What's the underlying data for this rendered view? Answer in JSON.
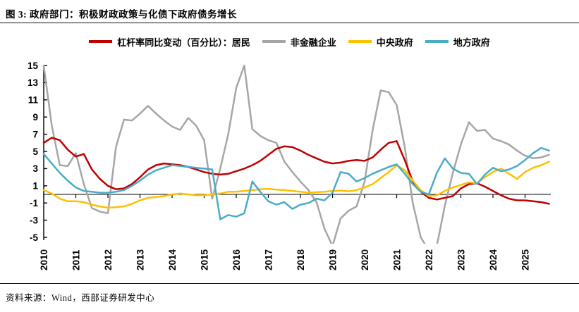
{
  "figure": {
    "title": "图 3: 政府部门：积极财政政策与化债下政府债务增长",
    "source": "资料来源：Wind，西部证券研发中心"
  },
  "colors": {
    "households": "#C00000",
    "nonfinancial": "#A6A6A6",
    "central_gov": "#FFC000",
    "local_gov": "#4BACC6",
    "axis": "#000000"
  },
  "chart_data": {
    "type": "line",
    "title": "政府部门：积极财政政策与化债下政府债务增长",
    "xlabel": "",
    "ylabel": "",
    "x_start": 2010,
    "x_step": 0.25,
    "x_tick_labels": [
      "2010",
      "2011",
      "2012",
      "2013",
      "2014",
      "2015",
      "2016",
      "2017",
      "2018",
      "2019",
      "2020",
      "2021",
      "2022",
      "2023",
      "2024",
      "2025"
    ],
    "y_ticks": [
      15,
      13,
      11,
      9,
      7,
      5,
      3,
      1,
      -1,
      -3,
      -5
    ],
    "ylim": [
      -5,
      15
    ],
    "zero_line": true,
    "grid": false,
    "legend_position": "top",
    "series": [
      {
        "name": "杠杆率同比变动（百分比）：居民",
        "color": "#C00000",
        "values": [
          6.0,
          6.6,
          6.3,
          5.2,
          4.4,
          4.7,
          2.9,
          1.8,
          1.0,
          0.6,
          0.7,
          1.2,
          2.0,
          2.9,
          3.4,
          3.6,
          3.5,
          3.4,
          3.2,
          2.9,
          2.6,
          2.4,
          2.3,
          2.4,
          2.7,
          3.0,
          3.4,
          3.9,
          4.6,
          5.3,
          5.6,
          5.5,
          5.1,
          4.6,
          4.2,
          3.8,
          3.6,
          3.7,
          3.9,
          4.0,
          3.9,
          4.3,
          5.2,
          6.0,
          6.2,
          4.0,
          1.5,
          0.3,
          -0.4,
          -0.6,
          -0.4,
          -0.2,
          0.7,
          1.2,
          1.3,
          0.9,
          0.4,
          -0.1,
          -0.5,
          -0.7,
          -0.7,
          -0.8,
          -0.9,
          -1.1
        ]
      },
      {
        "name": "非金融企业",
        "color": "#A6A6A6",
        "values": [
          15.0,
          8.0,
          3.4,
          3.3,
          4.8,
          1.2,
          -1.6,
          -2.0,
          -2.2,
          5.5,
          8.7,
          8.6,
          9.4,
          10.3,
          9.4,
          8.6,
          7.9,
          7.5,
          8.9,
          8.0,
          6.3,
          -0.5,
          3.0,
          7.0,
          12.4,
          15.0,
          7.6,
          6.8,
          6.3,
          6.0,
          3.8,
          2.6,
          1.5,
          0.5,
          -0.9,
          -4.0,
          -6.0,
          -2.8,
          -1.9,
          -1.4,
          1.5,
          7.5,
          12.1,
          11.9,
          10.4,
          5.5,
          -1.0,
          -5.0,
          -6.5,
          -6.0,
          -1.3,
          2.5,
          5.8,
          8.4,
          7.4,
          7.5,
          6.5,
          6.2,
          5.8,
          5.1,
          4.5,
          4.2,
          4.3,
          4.6
        ]
      },
      {
        "name": "中央政府",
        "color": "#FFC000",
        "values": [
          0.5,
          0.1,
          -0.5,
          -0.8,
          -0.8,
          -0.9,
          -1.2,
          -1.4,
          -1.55,
          -1.5,
          -1.4,
          -1.1,
          -0.7,
          -0.4,
          -0.3,
          -0.2,
          0.0,
          0.1,
          0.0,
          -0.1,
          -0.1,
          0.0,
          0.1,
          0.3,
          0.3,
          0.4,
          0.5,
          0.6,
          0.65,
          0.55,
          0.5,
          0.4,
          0.3,
          0.2,
          0.25,
          0.3,
          0.4,
          0.45,
          0.35,
          0.5,
          0.8,
          1.2,
          1.9,
          2.6,
          3.4,
          2.8,
          1.6,
          0.5,
          -0.2,
          -0.1,
          0.4,
          0.8,
          1.1,
          1.4,
          1.3,
          2.0,
          2.6,
          3.0,
          2.4,
          1.8,
          2.6,
          3.1,
          3.4,
          3.8
        ]
      },
      {
        "name": "地方政府",
        "color": "#4BACC6",
        "values": [
          4.7,
          3.6,
          2.5,
          1.6,
          0.8,
          0.4,
          0.3,
          0.2,
          0.2,
          0.3,
          0.5,
          1.0,
          1.6,
          2.3,
          2.8,
          3.1,
          3.4,
          3.3,
          3.2,
          3.1,
          3.0,
          2.9,
          -2.9,
          -2.4,
          -2.6,
          -2.2,
          1.5,
          0.3,
          -0.8,
          -1.2,
          -0.9,
          -1.7,
          -1.2,
          -1.0,
          -0.5,
          -0.7,
          0.2,
          2.6,
          2.4,
          1.5,
          1.9,
          2.4,
          2.8,
          3.2,
          3.5,
          2.4,
          1.2,
          0.3,
          0.0,
          2.5,
          4.2,
          3.0,
          2.5,
          2.4,
          1.2,
          2.3,
          3.1,
          2.7,
          2.9,
          3.3,
          4.0,
          4.8,
          5.4,
          5.1
        ]
      }
    ]
  }
}
